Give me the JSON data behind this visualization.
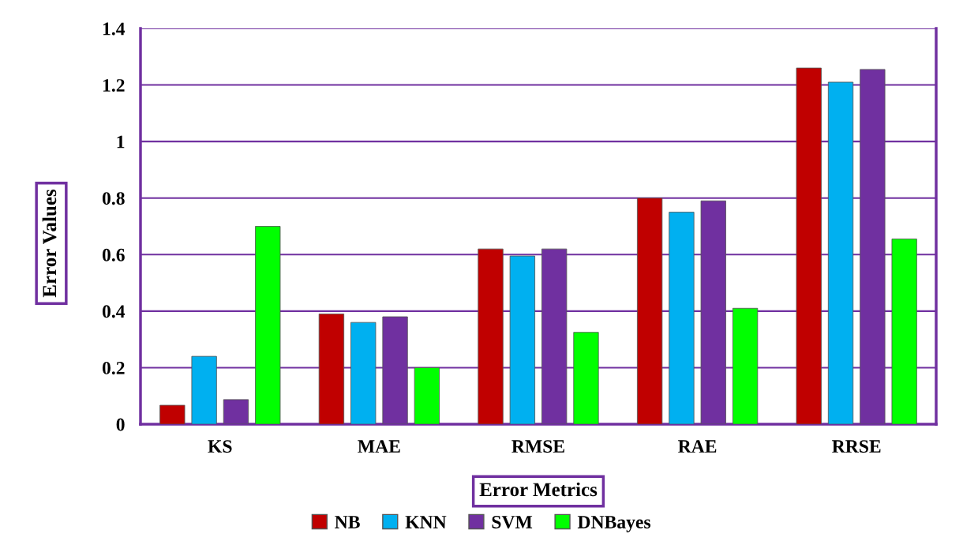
{
  "chart_data": {
    "type": "bar",
    "xlabel": "Error Metrics",
    "ylabel": "Error Values",
    "categories": [
      "KS",
      "MAE",
      "RMSE",
      "RAE",
      "RRSE"
    ],
    "series": [
      {
        "name": "NB",
        "color": "#c00000",
        "values": [
          0.067,
          0.39,
          0.62,
          0.8,
          1.26
        ]
      },
      {
        "name": "KNN",
        "color": "#00b0f0",
        "values": [
          0.24,
          0.36,
          0.595,
          0.75,
          1.21
        ]
      },
      {
        "name": "SVM",
        "color": "#7030a0",
        "values": [
          0.087,
          0.38,
          0.62,
          0.79,
          1.255
        ]
      },
      {
        "name": "DNBayes",
        "color": "#00ff00",
        "values": [
          0.7,
          0.2,
          0.325,
          0.41,
          0.655
        ]
      }
    ],
    "ylim": [
      0,
      1.4
    ],
    "yticks": [
      0,
      0.2,
      0.4,
      0.6,
      0.8,
      1,
      1.2,
      1.4
    ],
    "grid": "y",
    "legend": "bottom"
  }
}
